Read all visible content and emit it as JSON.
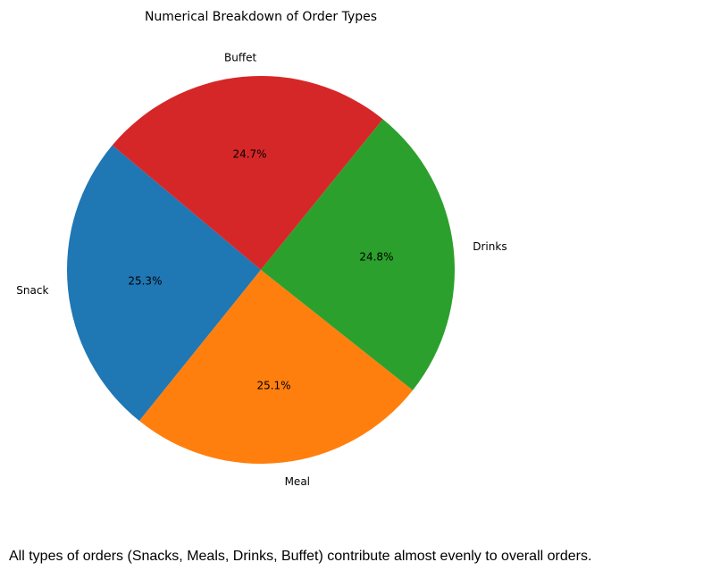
{
  "chart_data": {
    "type": "pie",
    "title": "Numerical Breakdown of Order Types",
    "slices": [
      {
        "label": "Snack",
        "value": 25.3,
        "pct_label": "25.3%",
        "color": "#1f77b4"
      },
      {
        "label": "Meal",
        "value": 25.1,
        "pct_label": "25.1%",
        "color": "#ff7f0e"
      },
      {
        "label": "Drinks",
        "value": 24.8,
        "pct_label": "24.8%",
        "color": "#2ca02c"
      },
      {
        "label": "Buffet",
        "value": 24.7,
        "pct_label": "24.7%",
        "color": "#d62728"
      }
    ],
    "legend": "none",
    "start_angle_deg": 140,
    "direction": "counterclockwise"
  },
  "caption": "All types of orders (Snacks, Meals, Drinks, Buffet) contribute almost evenly to overall orders."
}
